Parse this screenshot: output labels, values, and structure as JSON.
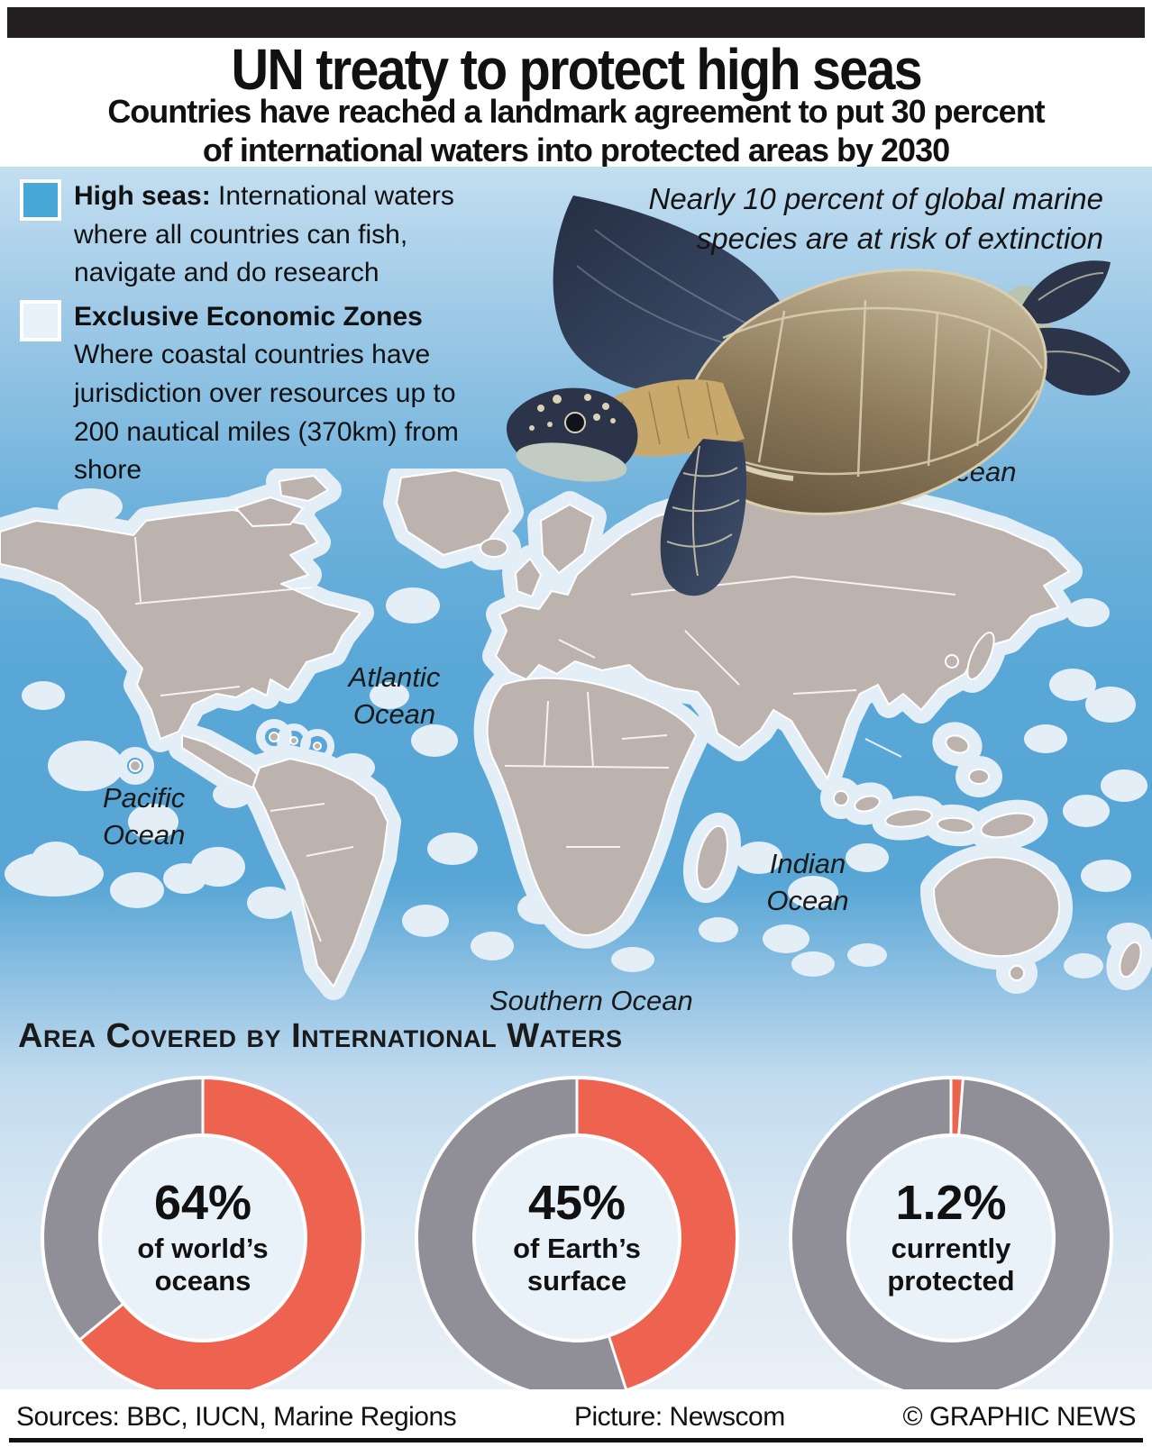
{
  "header": {
    "title": "UN treaty to protect high seas",
    "subtitle": "Countries have reached a landmark agreement to put 30 percent\nof international waters into protected areas by 2030"
  },
  "legend": {
    "items": [
      {
        "term": "High seas:",
        "description": " International waters where all countries can fish, navigate and do research",
        "swatch_color": "#47a7d7"
      },
      {
        "term": "Exclusive Economic Zones",
        "description": "Where coastal countries have jurisdiction over resources up to 200 nautical miles (370km) from shore",
        "swatch_color": "#e7f1f9"
      }
    ]
  },
  "callout": {
    "text": "Nearly 10 percent of global marine\nspecies are at risk of extinction"
  },
  "map": {
    "ocean_labels": [
      "Arctic Ocean",
      "Atlantic\nOcean",
      "Pacific\nOcean",
      "Indian\nOcean",
      "Southern Ocean"
    ],
    "land_color": "#bcb2ae",
    "eez_color": "#e3eef7",
    "border_color": "#ffffff",
    "high_seas_color": "#57a6d5"
  },
  "section": {
    "heading": "Area Covered by International Waters"
  },
  "chart_data": [
    {
      "type": "pie",
      "style": "donut",
      "title": "Area covered by international waters — share of world's oceans",
      "center_label": "64%",
      "center_sublabel": "of world’s\noceans",
      "slices": [
        {
          "name": "international waters",
          "value": 64,
          "color": "#ee6350"
        },
        {
          "name": "remainder",
          "value": 36,
          "color": "#908e96"
        }
      ],
      "start_angle": "top",
      "direction": "clockwise"
    },
    {
      "type": "pie",
      "style": "donut",
      "title": "Area covered by international waters — share of Earth's surface",
      "center_label": "45%",
      "center_sublabel": "of Earth’s\nsurface",
      "slices": [
        {
          "name": "international waters",
          "value": 45,
          "color": "#ee6350"
        },
        {
          "name": "remainder",
          "value": 55,
          "color": "#908e96"
        }
      ],
      "start_angle": "top",
      "direction": "clockwise"
    },
    {
      "type": "pie",
      "style": "donut",
      "title": "Share of international waters currently protected",
      "center_label": "1.2%",
      "center_sublabel": "currently\nprotected",
      "slices": [
        {
          "name": "currently protected",
          "value": 1.2,
          "color": "#ee6350"
        },
        {
          "name": "unprotected",
          "value": 98.8,
          "color": "#908e96"
        }
      ],
      "start_angle": "top",
      "direction": "clockwise"
    }
  ],
  "footer": {
    "sources": "Sources: BBC, IUCN, Marine Regions",
    "picture": "Picture: Newscom",
    "copyright": "© GRAPHIC NEWS"
  }
}
